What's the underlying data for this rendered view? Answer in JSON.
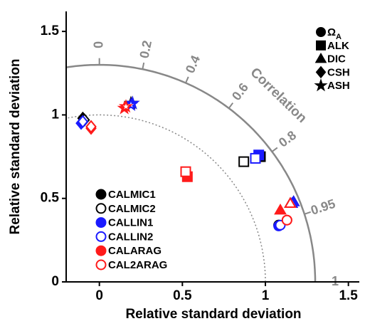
{
  "chart_data": {
    "type": "taylor",
    "xlabel": "Relative standard deviation",
    "ylabel": "Relative standard deviation",
    "xlim": [
      -0.2,
      1.6
    ],
    "ylim": [
      0,
      1.62
    ],
    "xticks": [
      0,
      0.5,
      1,
      1.5
    ],
    "yticks": [
      0,
      0.5,
      1,
      1.5
    ],
    "arc_radius": 1.3,
    "ref_radius": 1,
    "arc_color": "#888888",
    "correlation_label": "Correlation",
    "correlation_ticks": [
      0,
      0.2,
      0.4,
      0.6,
      0.8,
      0.95,
      1
    ],
    "variables": [
      {
        "name": "Ω",
        "sub": "A",
        "shape": "circle"
      },
      {
        "name": "ALK",
        "shape": "square"
      },
      {
        "name": "DIC",
        "shape": "triangle"
      },
      {
        "name": "CSH",
        "shape": "diamond"
      },
      {
        "name": "ASH",
        "shape": "star"
      }
    ],
    "series": [
      {
        "name": "CALMIC1",
        "color": "#000000",
        "filled": true,
        "x": [
          1.08,
          0.97,
          1.17,
          -0.1,
          0.2
        ],
        "y": [
          0.34,
          0.75,
          0.48,
          0.98,
          1.07
        ]
      },
      {
        "name": "CALMIC2",
        "color": "#000000",
        "filled": false,
        "x": [
          1.08,
          0.87,
          1.15,
          -0.09,
          0.19
        ],
        "y": [
          0.34,
          0.72,
          0.47,
          0.97,
          1.07
        ]
      },
      {
        "name": "CALLIN1",
        "color": "#1a1aff",
        "filled": true,
        "x": [
          1.08,
          0.96,
          1.17,
          -0.11,
          0.2
        ],
        "y": [
          0.335,
          0.76,
          0.48,
          0.95,
          1.07
        ]
      },
      {
        "name": "CALLIN2",
        "color": "#1a1aff",
        "filled": false,
        "x": [
          1.09,
          0.94,
          1.16,
          -0.1,
          0.19
        ],
        "y": [
          0.34,
          0.74,
          0.47,
          0.96,
          1.06
        ]
      },
      {
        "name": "CALARAG",
        "color": "#ff1a1a",
        "filled": true,
        "x": [
          1.13,
          0.53,
          1.09,
          -0.05,
          0.15
        ],
        "y": [
          0.37,
          0.63,
          0.43,
          0.92,
          1.04
        ]
      },
      {
        "name": "CAL2ARAG",
        "color": "#ff1a1a",
        "filled": false,
        "x": [
          1.13,
          0.52,
          1.15,
          -0.05,
          0.16
        ],
        "y": [
          0.37,
          0.66,
          0.47,
          0.93,
          1.05
        ]
      }
    ]
  }
}
